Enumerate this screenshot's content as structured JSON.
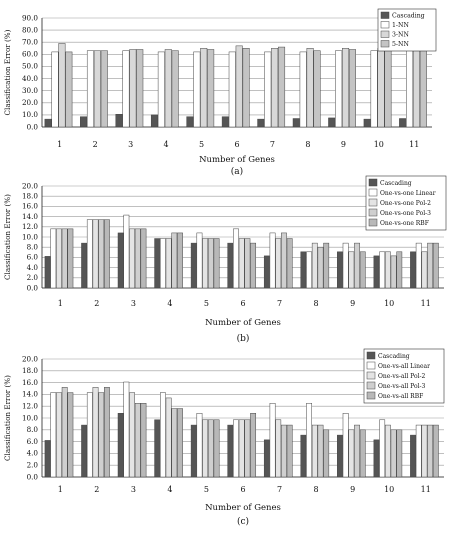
{
  "chart_data": [
    {
      "type": "bar",
      "panel_label": "(a)",
      "xlabel": "Number of Genes",
      "ylabel": "Classification Error (%)",
      "ylim": [
        0,
        90
      ],
      "yticks": [
        "0.0",
        "10.0",
        "20.0",
        "30.0",
        "40.0",
        "50.0",
        "60.0",
        "70.0",
        "80.0",
        "90.0"
      ],
      "ytick_values": [
        0,
        10,
        20,
        30,
        40,
        50,
        60,
        70,
        80,
        90
      ],
      "grid": true,
      "legend_position": "top-right",
      "categories": [
        "1",
        "2",
        "3",
        "4",
        "5",
        "6",
        "7",
        "8",
        "9",
        "10",
        "11"
      ],
      "series": [
        {
          "name": "Cascading",
          "values": [
            6.5,
            8.5,
            10.5,
            10,
            8.5,
            8.5,
            6.5,
            7,
            7.5,
            6.5,
            7
          ],
          "color": "#555555"
        },
        {
          "name": "1-NN",
          "values": [
            62,
            63,
            63,
            62,
            62,
            62,
            62,
            62,
            63,
            63,
            63
          ],
          "color": "#ffffff"
        },
        {
          "name": "3-NN",
          "values": [
            69,
            63,
            64,
            64,
            65,
            67,
            65,
            65,
            65,
            65,
            64
          ],
          "color": "#d8d8d8"
        },
        {
          "name": "5-NN",
          "values": [
            62,
            63,
            64,
            63,
            64,
            65,
            66,
            63,
            64,
            63,
            63
          ],
          "color": "#c4c4c4"
        }
      ]
    },
    {
      "type": "bar",
      "panel_label": "(b)",
      "xlabel": "Number of Genes",
      "ylabel": "Classification Error (%)",
      "ylim": [
        0,
        20
      ],
      "yticks": [
        "0.0",
        "2.0",
        "4.0",
        "6.0",
        "8.0",
        "10.0",
        "12.0",
        "14.0",
        "16.0",
        "18.0",
        "20.0"
      ],
      "ytick_values": [
        0,
        2,
        4,
        6,
        8,
        10,
        12,
        14,
        16,
        18,
        20
      ],
      "grid": true,
      "legend_position": "top-right",
      "categories": [
        "1",
        "2",
        "3",
        "4",
        "5",
        "6",
        "7",
        "8",
        "9",
        "10",
        "11"
      ],
      "series": [
        {
          "name": "Cascading",
          "values": [
            6.2,
            8.8,
            10.8,
            9.7,
            8.8,
            8.8,
            6.3,
            7.1,
            7.1,
            6.3,
            7.1
          ],
          "color": "#555555"
        },
        {
          "name": "One-vs-one Linear",
          "values": [
            11.6,
            13.4,
            14.3,
            9.7,
            10.8,
            11.6,
            10.8,
            7.1,
            8.8,
            7.1,
            8.8
          ],
          "color": "#ffffff"
        },
        {
          "name": "One-vs-one Pol-2",
          "values": [
            11.6,
            13.4,
            11.6,
            9.7,
            9.7,
            9.7,
            9.7,
            8.8,
            7.1,
            7.1,
            7.1
          ],
          "color": "#e4e4e4"
        },
        {
          "name": "One-vs-one Pol-3",
          "values": [
            11.6,
            13.4,
            11.6,
            10.8,
            9.7,
            9.7,
            10.8,
            8.0,
            8.8,
            6.3,
            8.8
          ],
          "color": "#cfcfcf"
        },
        {
          "name": "One-vs-one RBF",
          "values": [
            11.6,
            13.4,
            11.6,
            10.8,
            9.7,
            8.8,
            9.7,
            8.8,
            7.1,
            7.1,
            8.8
          ],
          "color": "#b8b8b8"
        }
      ]
    },
    {
      "type": "bar",
      "panel_label": "(c)",
      "xlabel": "Number of Genes",
      "ylabel": "Classification Error (%)",
      "ylim": [
        0,
        20
      ],
      "yticks": [
        "0.0",
        "2.0",
        "4.0",
        "6.0",
        "8.0",
        "10.0",
        "12.0",
        "14.0",
        "16.0",
        "18.0",
        "20.0"
      ],
      "ytick_values": [
        0,
        2,
        4,
        6,
        8,
        10,
        12,
        14,
        16,
        18,
        20
      ],
      "grid": true,
      "legend_position": "top-right",
      "categories": [
        "1",
        "2",
        "3",
        "4",
        "5",
        "6",
        "7",
        "8",
        "9",
        "10",
        "11"
      ],
      "series": [
        {
          "name": "Cascading",
          "values": [
            6.2,
            8.8,
            10.8,
            9.7,
            8.8,
            8.8,
            6.3,
            7.1,
            7.1,
            6.3,
            7.1
          ],
          "color": "#555555"
        },
        {
          "name": "One-vs-all Linear",
          "values": [
            14.3,
            14.3,
            16.1,
            14.3,
            10.8,
            9.7,
            12.5,
            12.5,
            10.8,
            9.7,
            8.8
          ],
          "color": "#ffffff"
        },
        {
          "name": "One-vs-all Pol-2",
          "values": [
            14.3,
            15.2,
            14.3,
            13.4,
            9.7,
            9.7,
            9.7,
            8.8,
            8.0,
            8.8,
            8.8
          ],
          "color": "#e4e4e4"
        },
        {
          "name": "One-vs-all Pol-3",
          "values": [
            15.2,
            14.3,
            12.5,
            11.6,
            9.7,
            9.7,
            8.8,
            8.8,
            8.8,
            8.0,
            8.8
          ],
          "color": "#cfcfcf"
        },
        {
          "name": "One-vs-all RBF",
          "values": [
            14.3,
            15.2,
            12.5,
            11.6,
            9.7,
            10.8,
            8.8,
            8.0,
            8.0,
            8.0,
            8.8
          ],
          "color": "#b8b8b8"
        }
      ]
    }
  ]
}
